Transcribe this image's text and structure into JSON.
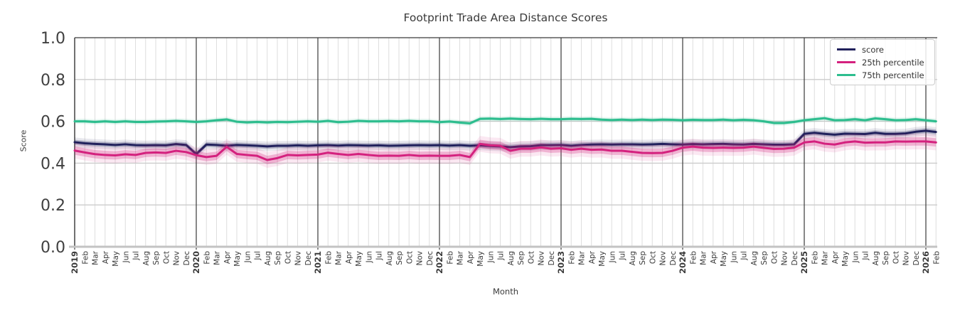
{
  "chart_data": {
    "type": "line",
    "title": "Footprint Trade Area Distance Scores",
    "xlabel": "Month",
    "ylabel": "Score",
    "ylim": [
      0.0,
      1.0
    ],
    "ytick_labels": [
      "0.0",
      "0.2",
      "0.4",
      "0.6",
      "0.8",
      "1.0"
    ],
    "grid": "on",
    "legend_position": "upper right",
    "x_labels": [
      "2019",
      "Feb",
      "Mar",
      "Apr",
      "May",
      "Jun",
      "Jul",
      "Aug",
      "Sep",
      "Oct",
      "Nov",
      "Dec",
      "2020",
      "Feb",
      "Mar",
      "Apr",
      "May",
      "Jun",
      "Jul",
      "Aug",
      "Sep",
      "Oct",
      "Nov",
      "Dec",
      "2021",
      "Feb",
      "Mar",
      "Apr",
      "May",
      "Jun",
      "Jul",
      "Aug",
      "Sep",
      "Oct",
      "Nov",
      "Dec",
      "2022",
      "Feb",
      "Mar",
      "Apr",
      "May",
      "Jun",
      "Jul",
      "Aug",
      "Sep",
      "Oct",
      "Nov",
      "Dec",
      "2023",
      "Feb",
      "Mar",
      "Apr",
      "May",
      "Jun",
      "Jul",
      "Aug",
      "Sep",
      "Oct",
      "Nov",
      "Dec",
      "2024",
      "Feb",
      "Mar",
      "Apr",
      "May",
      "Jun",
      "Jul",
      "Aug",
      "Sep",
      "Oct",
      "Nov",
      "Dec",
      "2025",
      "Feb",
      "Mar",
      "Apr",
      "May",
      "Jun",
      "Jul",
      "Aug",
      "Sep",
      "Oct",
      "Nov",
      "Dec",
      "2026",
      "Feb"
    ],
    "series": [
      {
        "name": "score",
        "color": "#21215C",
        "band": 0.012,
        "values": [
          0.5,
          0.495,
          0.492,
          0.49,
          0.487,
          0.49,
          0.486,
          0.485,
          0.486,
          0.485,
          0.491,
          0.487,
          0.443,
          0.489,
          0.487,
          0.483,
          0.487,
          0.485,
          0.483,
          0.48,
          0.483,
          0.483,
          0.485,
          0.483,
          0.485,
          0.486,
          0.484,
          0.486,
          0.485,
          0.484,
          0.485,
          0.483,
          0.484,
          0.485,
          0.486,
          0.485,
          0.486,
          0.484,
          0.486,
          0.483,
          0.485,
          0.482,
          0.48,
          0.476,
          0.48,
          0.481,
          0.486,
          0.486,
          0.487,
          0.483,
          0.487,
          0.489,
          0.49,
          0.489,
          0.49,
          0.49,
          0.489,
          0.49,
          0.492,
          0.49,
          0.489,
          0.491,
          0.49,
          0.491,
          0.492,
          0.49,
          0.489,
          0.492,
          0.49,
          0.488,
          0.488,
          0.49,
          0.54,
          0.545,
          0.54,
          0.536,
          0.541,
          0.54,
          0.539,
          0.545,
          0.54,
          0.54,
          0.542,
          0.55,
          0.555,
          0.549
        ]
      },
      {
        "name": "25th percentile",
        "color": "#D4217E",
        "band": 0.02,
        "values": [
          0.46,
          0.451,
          0.443,
          0.439,
          0.437,
          0.442,
          0.439,
          0.449,
          0.451,
          0.449,
          0.459,
          0.453,
          0.438,
          0.429,
          0.435,
          0.478,
          0.444,
          0.439,
          0.435,
          0.415,
          0.424,
          0.439,
          0.437,
          0.439,
          0.441,
          0.45,
          0.444,
          0.439,
          0.444,
          0.439,
          0.435,
          0.436,
          0.435,
          0.439,
          0.435,
          0.436,
          0.435,
          0.435,
          0.439,
          0.429,
          0.492,
          0.485,
          0.483,
          0.459,
          0.469,
          0.469,
          0.475,
          0.469,
          0.471,
          0.464,
          0.469,
          0.464,
          0.465,
          0.459,
          0.459,
          0.454,
          0.449,
          0.448,
          0.449,
          0.459,
          0.474,
          0.479,
          0.474,
          0.473,
          0.474,
          0.473,
          0.474,
          0.479,
          0.473,
          0.468,
          0.469,
          0.474,
          0.499,
          0.504,
          0.493,
          0.489,
          0.499,
          0.504,
          0.498,
          0.499,
          0.499,
          0.504,
          0.503,
          0.504,
          0.504,
          0.499
        ]
      },
      {
        "name": "75th percentile",
        "color": "#2DBD8E",
        "band": 0.007,
        "values": [
          0.6,
          0.6,
          0.597,
          0.6,
          0.597,
          0.6,
          0.597,
          0.597,
          0.599,
          0.6,
          0.602,
          0.6,
          0.597,
          0.6,
          0.605,
          0.609,
          0.598,
          0.595,
          0.597,
          0.595,
          0.597,
          0.596,
          0.598,
          0.6,
          0.598,
          0.602,
          0.596,
          0.598,
          0.602,
          0.6,
          0.6,
          0.601,
          0.6,
          0.602,
          0.6,
          0.6,
          0.596,
          0.599,
          0.594,
          0.59,
          0.612,
          0.613,
          0.611,
          0.613,
          0.611,
          0.61,
          0.612,
          0.61,
          0.61,
          0.612,
          0.611,
          0.612,
          0.608,
          0.606,
          0.608,
          0.606,
          0.608,
          0.606,
          0.608,
          0.607,
          0.605,
          0.607,
          0.606,
          0.606,
          0.608,
          0.605,
          0.607,
          0.605,
          0.6,
          0.592,
          0.592,
          0.597,
          0.605,
          0.61,
          0.615,
          0.605,
          0.606,
          0.61,
          0.605,
          0.614,
          0.61,
          0.605,
          0.606,
          0.61,
          0.605,
          0.6
        ]
      }
    ],
    "colors": {
      "grid_minor": "#dedede",
      "grid_major_h": "#cccccc",
      "year_line": "#3a3a3a",
      "spine": "#3a3a3a",
      "baseline": "#c3c3c3",
      "text": "#3a3a3a"
    }
  }
}
